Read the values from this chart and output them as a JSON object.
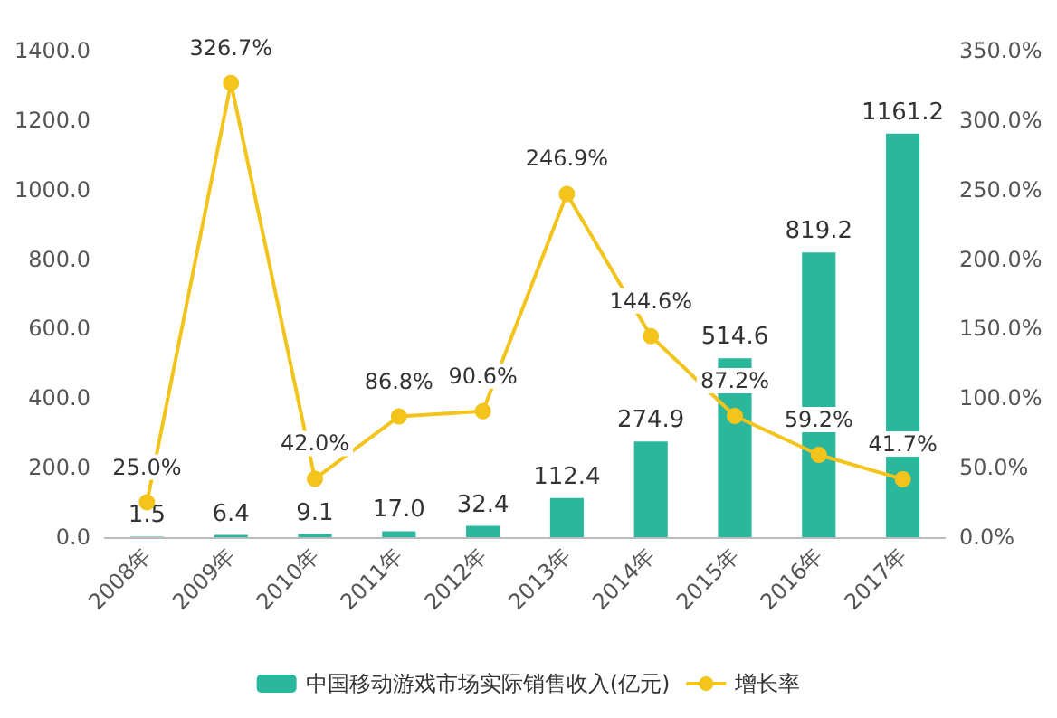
{
  "chart_data": {
    "type": "bar",
    "categories": [
      "2008年",
      "2009年",
      "2010年",
      "2011年",
      "2012年",
      "2013年",
      "2014年",
      "2015年",
      "2016年",
      "2017年"
    ],
    "series": [
      {
        "name": "中国移动游戏市场实际销售收入(亿元)",
        "color": "#2bb79b",
        "values": [
          1.5,
          6.4,
          9.1,
          17.0,
          32.4,
          112.4,
          274.9,
          514.6,
          819.2,
          1161.2
        ],
        "value_labels": [
          "1.5",
          "6.4",
          "9.1",
          "17.0",
          "32.4",
          "112.4",
          "274.9",
          "514.6",
          "819.2",
          "1161.2"
        ]
      },
      {
        "name": "增长率",
        "type": "line",
        "axis": "y2",
        "color": "#f2c41c",
        "values": [
          25.0,
          326.7,
          42.0,
          86.8,
          90.6,
          246.9,
          144.6,
          87.2,
          59.2,
          41.7
        ],
        "value_labels": [
          "25.0%",
          "326.7%",
          "42.0%",
          "86.8%",
          "90.6%",
          "246.9%",
          "144.6%",
          "87.2%",
          "59.2%",
          "41.7%"
        ]
      }
    ],
    "ylim": [
      0,
      1400
    ],
    "yticks": [
      {
        "value": 0,
        "label": "0.0"
      },
      {
        "value": 200,
        "label": "200.0"
      },
      {
        "value": 400,
        "label": "400.0"
      },
      {
        "value": 600,
        "label": "600.0"
      },
      {
        "value": 800,
        "label": "800.0"
      },
      {
        "value": 1000,
        "label": "1000.0"
      },
      {
        "value": 1200,
        "label": "1200.0"
      },
      {
        "value": 1400,
        "label": "1400.0"
      }
    ],
    "y2lim": [
      0,
      350
    ],
    "y2ticks": [
      {
        "value": 0,
        "label": "0.0%"
      },
      {
        "value": 50,
        "label": "50.0%"
      },
      {
        "value": 100,
        "label": "100.0%"
      },
      {
        "value": 150,
        "label": "150.0%"
      },
      {
        "value": 200,
        "label": "200.0%"
      },
      {
        "value": 250,
        "label": "250.0%"
      },
      {
        "value": 300,
        "label": "300.0%"
      },
      {
        "value": 350,
        "label": "350.0%"
      }
    ],
    "grid": false,
    "legend": "bottom",
    "marker": "circle",
    "line_style": "solid"
  }
}
